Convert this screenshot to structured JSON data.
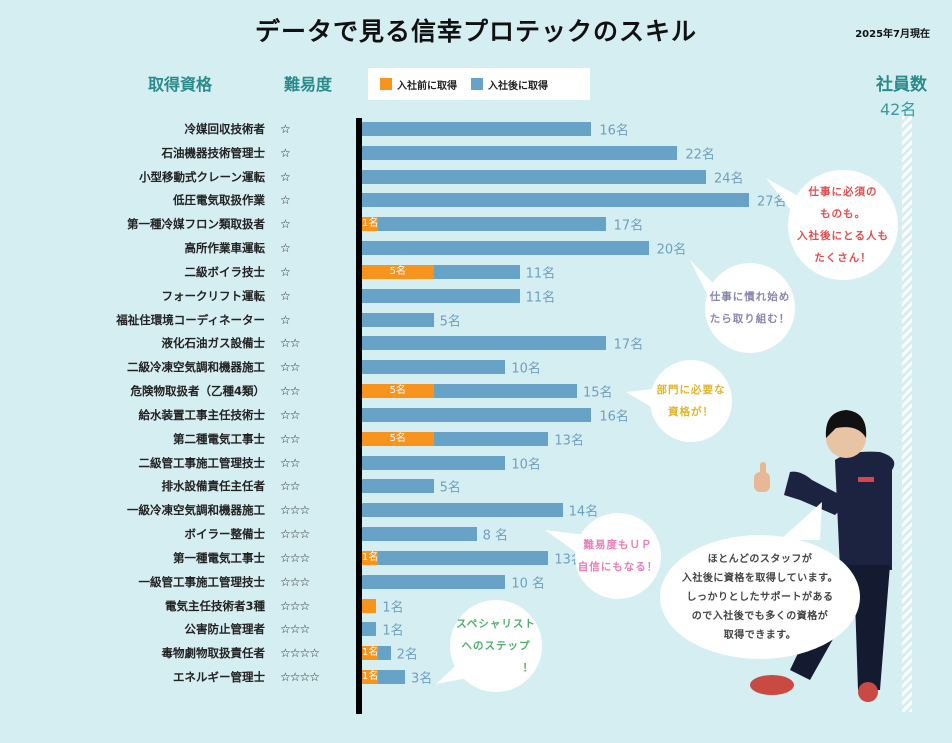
{
  "header": {
    "title": "データで見る信幸プロテックのスキル",
    "date": "2025年7月現在",
    "col_qualification": "取得資格",
    "col_difficulty": "難易度",
    "staff_label": "社員数",
    "staff_count": "42名"
  },
  "legend": {
    "before": "入社前に取得",
    "after": "入社後に取得"
  },
  "colors": {
    "before": "#f7941d",
    "after": "#66a3c7",
    "accent": "#2b8b8c"
  },
  "chart_data": {
    "type": "bar",
    "orientation": "horizontal",
    "stacked": true,
    "unit": "名",
    "xlim": [
      0,
      27
    ],
    "series": [
      {
        "name": "入社前に取得",
        "color": "#f7941d"
      },
      {
        "name": "入社後に取得",
        "color": "#66a3c7"
      }
    ],
    "rows": [
      {
        "name": "冷媒回収技術者",
        "stars": "☆",
        "before": 0,
        "total": 16,
        "label": "16名"
      },
      {
        "name": "石油機器技術管理士",
        "stars": "☆",
        "before": 0,
        "total": 22,
        "label": "22名"
      },
      {
        "name": "小型移動式クレーン運転",
        "stars": "☆",
        "before": 0,
        "total": 24,
        "label": "24名"
      },
      {
        "name": "低圧電気取扱作業",
        "stars": "☆",
        "before": 0,
        "total": 27,
        "label": "27名"
      },
      {
        "name": "第一種冷媒フロン類取扱者",
        "stars": "☆",
        "before": 1,
        "total": 17,
        "label": "17名",
        "before_label": "1名"
      },
      {
        "name": "高所作業車運転",
        "stars": "☆",
        "before": 0,
        "total": 20,
        "label": "20名"
      },
      {
        "name": "二級ボイラ技士",
        "stars": "☆",
        "before": 5,
        "total": 11,
        "label": "11名",
        "before_label": "5名"
      },
      {
        "name": "フォークリフト運転",
        "stars": "☆",
        "before": 0,
        "total": 11,
        "label": "11名"
      },
      {
        "name": "福祉住環境コーディネーター",
        "stars": "☆",
        "before": 0,
        "total": 5,
        "label": "5名"
      },
      {
        "name": "液化石油ガス設備士",
        "stars": "☆☆",
        "before": 0,
        "total": 17,
        "label": "17名"
      },
      {
        "name": "二級冷凍空気調和機器施工",
        "stars": "☆☆",
        "before": 0,
        "total": 10,
        "label": "10名"
      },
      {
        "name": "危険物取扱者（乙種4類）",
        "stars": "☆☆",
        "before": 5,
        "total": 15,
        "label": "15名",
        "before_label": "5名"
      },
      {
        "name": "給水装置工事主任技術士",
        "stars": "☆☆",
        "before": 0,
        "total": 16,
        "label": "16名"
      },
      {
        "name": "第二種電気工事士",
        "stars": "☆☆",
        "before": 5,
        "total": 13,
        "label": "13名",
        "before_label": "5名"
      },
      {
        "name": "二級管工事施工管理技士",
        "stars": "☆☆",
        "before": 0,
        "total": 10,
        "label": "10名"
      },
      {
        "name": "排水設備責任主任者",
        "stars": "☆☆",
        "before": 0,
        "total": 5,
        "label": "5名"
      },
      {
        "name": "一級冷凍空気調和機器施工",
        "stars": "☆☆☆",
        "before": 0,
        "total": 14,
        "label": "14名"
      },
      {
        "name": "ボイラー整備士",
        "stars": "☆☆☆",
        "before": 0,
        "total": 8,
        "label": "8 名"
      },
      {
        "name": "第一種電気工事士",
        "stars": "☆☆☆",
        "before": 1,
        "total": 13,
        "label": "13名",
        "before_label": "1名"
      },
      {
        "name": "一級管工事施工管理技士",
        "stars": "☆☆☆",
        "before": 0,
        "total": 10,
        "label": "10 名"
      },
      {
        "name": "電気主任技術者3種",
        "stars": "☆☆☆",
        "before": 1,
        "total": 1,
        "label": "1名"
      },
      {
        "name": "公害防止管理者",
        "stars": "☆☆☆",
        "before": 0,
        "total": 1,
        "label": "1名"
      },
      {
        "name": "毒物劇物取扱責任者",
        "stars": "☆☆☆☆",
        "before": 1,
        "total": 2,
        "label": "2名",
        "before_label": "1名"
      },
      {
        "name": "エネルギー管理士",
        "stars": "☆☆☆☆",
        "before": 1,
        "total": 3,
        "label": "3名",
        "before_label": "1名"
      }
    ]
  },
  "bubbles": {
    "red": [
      "仕事に必須の",
      "ものも。",
      "入社後にとる人も",
      "たくさん！"
    ],
    "purple": [
      "仕事に慣れ始め",
      "たら取り組む！"
    ],
    "yellow": [
      "部門に必要な",
      "資格が！"
    ],
    "pink": [
      "難易度もＵＰ",
      "自信にもなる！"
    ],
    "green": [
      "スペシャリスト",
      "へのステップ",
      "！"
    ],
    "main": [
      "ほとんどのスタッフが",
      "入社後に資格を取得しています。",
      "しっかりとしたサポートがある",
      "ので入社後でも多くの資格が",
      "取得できます。"
    ]
  }
}
